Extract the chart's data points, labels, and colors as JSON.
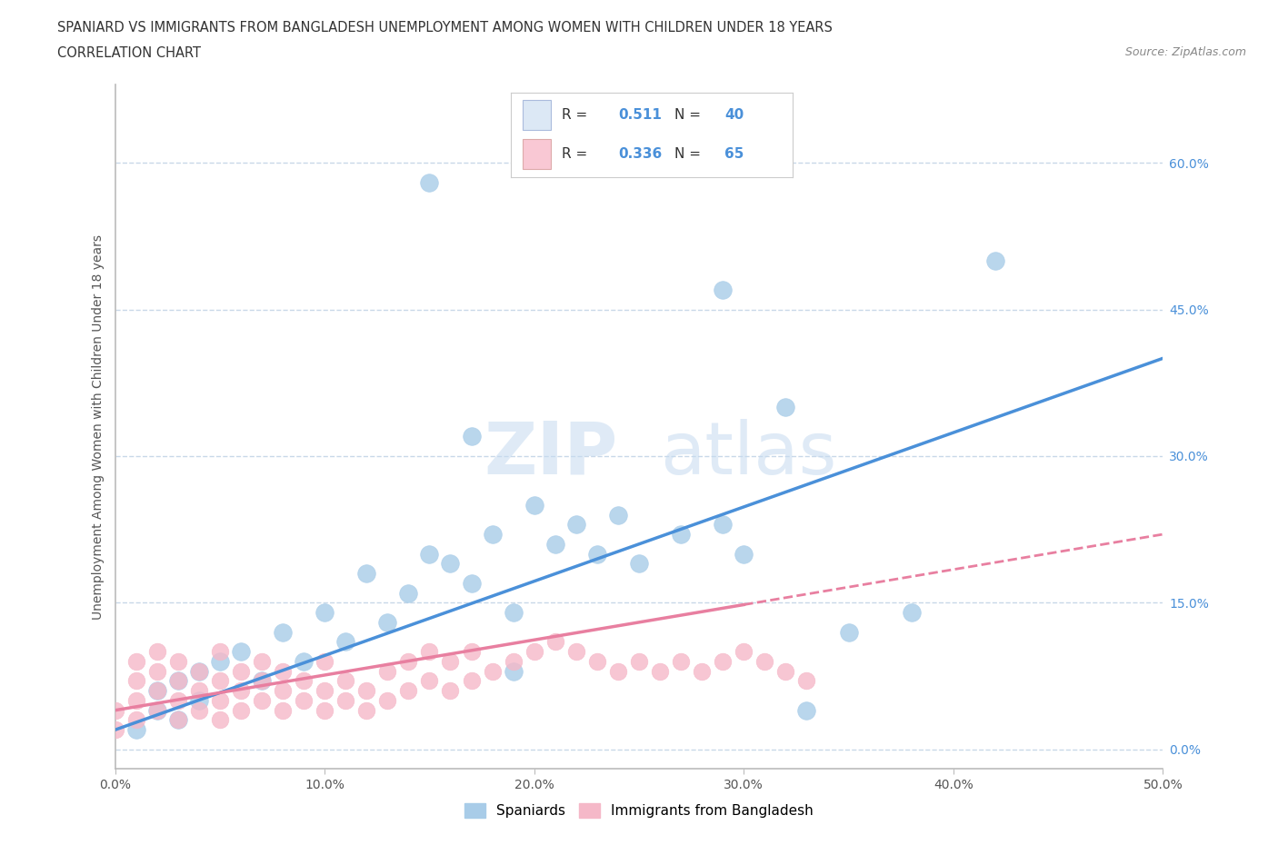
{
  "title_line1": "SPANIARD VS IMMIGRANTS FROM BANGLADESH UNEMPLOYMENT AMONG WOMEN WITH CHILDREN UNDER 18 YEARS",
  "title_line2": "CORRELATION CHART",
  "source": "Source: ZipAtlas.com",
  "ylabel": "Unemployment Among Women with Children Under 18 years",
  "xlim": [
    0.0,
    0.5
  ],
  "ylim": [
    -0.02,
    0.68
  ],
  "xticks": [
    0.0,
    0.1,
    0.2,
    0.3,
    0.4,
    0.5
  ],
  "yticks_right": [
    0.0,
    0.15,
    0.3,
    0.45,
    0.6
  ],
  "xtick_labels": [
    "0.0%",
    "10.0%",
    "20.0%",
    "30.0%",
    "40.0%",
    "50.0%"
  ],
  "ytick_labels_right": [
    "0.0%",
    "15.0%",
    "30.0%",
    "45.0%",
    "60.0%"
  ],
  "color_spaniard": "#a8cce8",
  "color_bangladesh": "#f5b8c8",
  "color_trend_spaniard": "#4a90d9",
  "color_trend_bangladesh": "#e87fa0",
  "R_spaniard": 0.511,
  "N_spaniard": 40,
  "R_bangladesh": 0.336,
  "N_bangladesh": 65,
  "background_color": "#ffffff",
  "grid_color": "#c8d8e8",
  "legend_box_color": "#dce8f5",
  "legend_box_pink": "#f9c8d4",
  "spaniard_x": [
    0.01,
    0.02,
    0.02,
    0.03,
    0.03,
    0.04,
    0.04,
    0.05,
    0.06,
    0.07,
    0.08,
    0.09,
    0.1,
    0.11,
    0.12,
    0.13,
    0.14,
    0.15,
    0.16,
    0.17,
    0.18,
    0.19,
    0.2,
    0.21,
    0.22,
    0.23,
    0.24,
    0.25,
    0.27,
    0.29,
    0.3,
    0.32,
    0.35,
    0.38,
    0.42,
    0.15,
    0.17,
    0.19,
    0.29,
    0.33
  ],
  "spaniard_y": [
    0.02,
    0.04,
    0.06,
    0.03,
    0.07,
    0.05,
    0.08,
    0.09,
    0.1,
    0.07,
    0.12,
    0.09,
    0.14,
    0.11,
    0.18,
    0.13,
    0.16,
    0.2,
    0.19,
    0.17,
    0.22,
    0.14,
    0.25,
    0.21,
    0.23,
    0.2,
    0.24,
    0.19,
    0.22,
    0.23,
    0.2,
    0.35,
    0.12,
    0.14,
    0.5,
    0.58,
    0.32,
    0.08,
    0.47,
    0.04
  ],
  "bangladesh_x": [
    0.0,
    0.0,
    0.01,
    0.01,
    0.01,
    0.01,
    0.02,
    0.02,
    0.02,
    0.02,
    0.03,
    0.03,
    0.03,
    0.03,
    0.04,
    0.04,
    0.04,
    0.05,
    0.05,
    0.05,
    0.05,
    0.06,
    0.06,
    0.06,
    0.07,
    0.07,
    0.07,
    0.08,
    0.08,
    0.08,
    0.09,
    0.09,
    0.1,
    0.1,
    0.1,
    0.11,
    0.11,
    0.12,
    0.12,
    0.13,
    0.13,
    0.14,
    0.14,
    0.15,
    0.15,
    0.16,
    0.16,
    0.17,
    0.17,
    0.18,
    0.19,
    0.2,
    0.21,
    0.22,
    0.23,
    0.24,
    0.25,
    0.26,
    0.27,
    0.28,
    0.29,
    0.3,
    0.31,
    0.32,
    0.33
  ],
  "bangladesh_y": [
    0.02,
    0.04,
    0.03,
    0.05,
    0.07,
    0.09,
    0.04,
    0.06,
    0.08,
    0.1,
    0.03,
    0.05,
    0.07,
    0.09,
    0.04,
    0.06,
    0.08,
    0.03,
    0.05,
    0.07,
    0.1,
    0.04,
    0.06,
    0.08,
    0.05,
    0.07,
    0.09,
    0.04,
    0.06,
    0.08,
    0.05,
    0.07,
    0.04,
    0.06,
    0.09,
    0.05,
    0.07,
    0.04,
    0.06,
    0.05,
    0.08,
    0.06,
    0.09,
    0.07,
    0.1,
    0.06,
    0.09,
    0.07,
    0.1,
    0.08,
    0.09,
    0.1,
    0.11,
    0.1,
    0.09,
    0.08,
    0.09,
    0.08,
    0.09,
    0.08,
    0.09,
    0.1,
    0.09,
    0.08,
    0.07
  ],
  "trend_spaniard_x0": 0.0,
  "trend_spaniard_y0": 0.02,
  "trend_spaniard_x1": 0.5,
  "trend_spaniard_y1": 0.4,
  "trend_bangladesh_x0": 0.0,
  "trend_bangladesh_y0": 0.04,
  "trend_bangladesh_x1": 0.5,
  "trend_bangladesh_y1": 0.22,
  "trend_bangladesh_solid_end": 0.3
}
